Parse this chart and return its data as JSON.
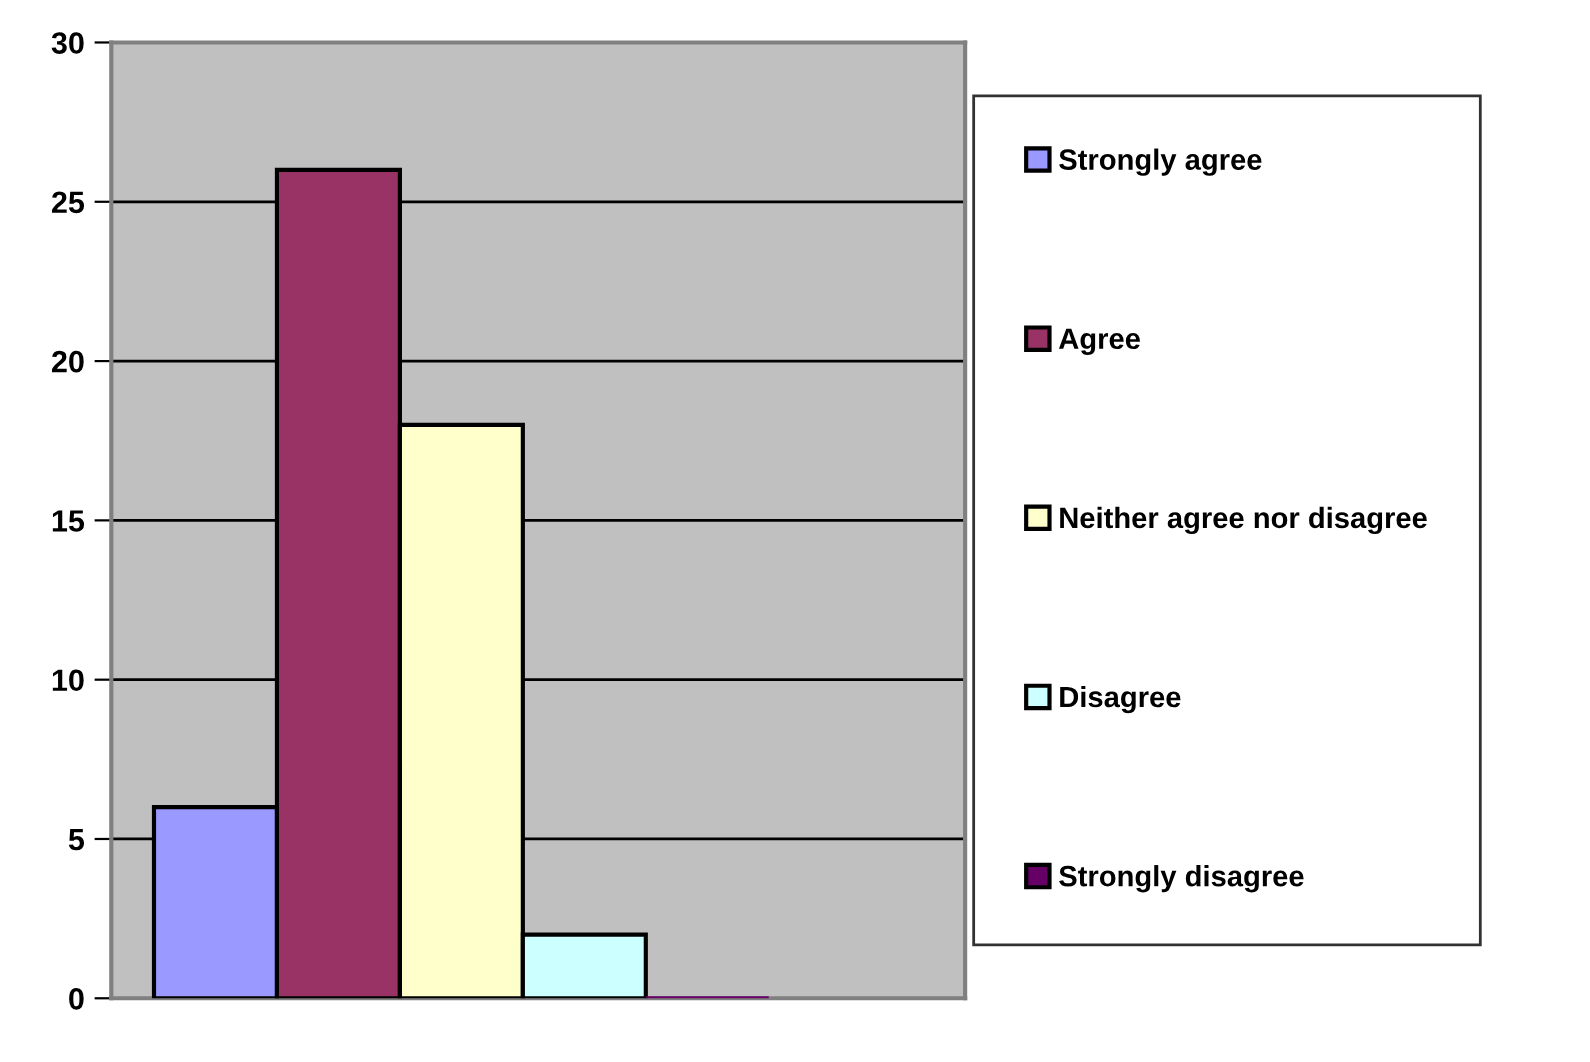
{
  "chart_data": {
    "type": "bar",
    "categories": [
      null
    ],
    "series": [
      {
        "name": "Strongly agree",
        "color": "#9999ff",
        "values": [
          6
        ]
      },
      {
        "name": "Agree",
        "color": "#993366",
        "values": [
          26
        ]
      },
      {
        "name": "Neither agree nor disagree",
        "color": "#ffffcc",
        "values": [
          18
        ]
      },
      {
        "name": "Disagree",
        "color": "#ccffff",
        "values": [
          2
        ]
      },
      {
        "name": "Strongly disagree",
        "color": "#660066",
        "values": [
          0
        ]
      }
    ],
    "ylim": [
      0,
      30
    ],
    "yticks": [
      0,
      5,
      10,
      15,
      20,
      25,
      30
    ],
    "grid": "y",
    "legend": "right"
  }
}
